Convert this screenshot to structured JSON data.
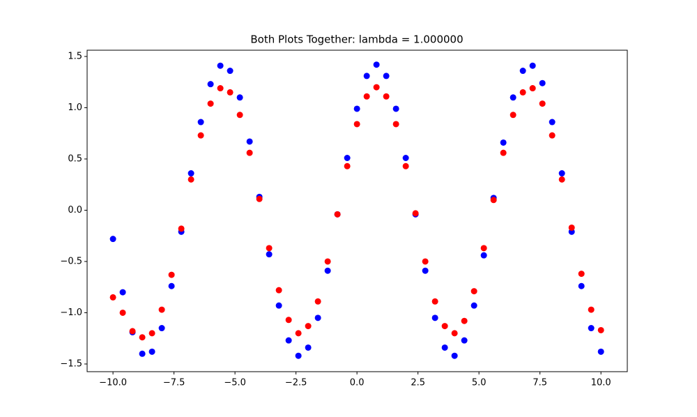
{
  "chart_data": {
    "type": "scatter",
    "title": "Both Plots Together: lambda = 1.000000",
    "x": [
      -10,
      -9.6,
      -9.2,
      -8.8,
      -8.4,
      -8.0,
      -7.6,
      -7.2,
      -6.8,
      -6.4,
      -6.0,
      -5.6,
      -5.2,
      -4.8,
      -4.4,
      -4.0,
      -3.6,
      -3.2,
      -2.8,
      -2.4,
      -2.0,
      -1.6,
      -1.2,
      -0.8,
      -0.4,
      0,
      0.4,
      0.8,
      1.2,
      1.6,
      2.0,
      2.4,
      2.8,
      3.2,
      3.6,
      4.0,
      4.4,
      4.8,
      5.2,
      5.6,
      6.0,
      6.4,
      6.8,
      7.2,
      7.6,
      8.0,
      8.4,
      8.8,
      9.2,
      9.6,
      10.0
    ],
    "series": [
      {
        "color": "#0000ff",
        "values": [
          -0.28,
          -0.8,
          -1.19,
          -1.4,
          -1.38,
          -1.15,
          -0.74,
          -0.21,
          0.36,
          0.86,
          1.23,
          1.41,
          1.36,
          1.1,
          0.67,
          0.13,
          -0.43,
          -0.93,
          -1.27,
          -1.42,
          -1.34,
          -1.05,
          -0.59,
          -0.04,
          0.51,
          0.99,
          1.31,
          1.42,
          1.31,
          0.99,
          0.51,
          -0.04,
          -0.59,
          -1.05,
          -1.34,
          -1.42,
          -1.27,
          -0.93,
          -0.44,
          0.12,
          0.66,
          1.1,
          1.36,
          1.41,
          1.24,
          0.86,
          0.36,
          -0.21,
          -0.74,
          -1.15,
          -1.38
        ]
      },
      {
        "color": "#ff0000",
        "values": [
          -0.85,
          -1.0,
          -1.18,
          -1.24,
          -1.2,
          -0.97,
          -0.63,
          -0.18,
          0.3,
          0.73,
          1.04,
          1.19,
          1.15,
          0.93,
          0.56,
          0.11,
          -0.37,
          -0.78,
          -1.07,
          -1.2,
          -1.13,
          -0.89,
          -0.5,
          -0.04,
          0.43,
          0.84,
          1.11,
          1.2,
          1.11,
          0.84,
          0.43,
          -0.03,
          -0.5,
          -0.89,
          -1.13,
          -1.2,
          -1.08,
          -0.79,
          -0.37,
          0.1,
          0.56,
          0.93,
          1.15,
          1.19,
          1.04,
          0.73,
          0.3,
          -0.17,
          -0.62,
          -0.97,
          -1.17
        ]
      }
    ],
    "xlim": [
      -11.06,
      11.08
    ],
    "ylim": [
      -1.575,
      1.561
    ],
    "xticks": [
      {
        "value": -10,
        "label": "−10.0"
      },
      {
        "value": -7.5,
        "label": "−7.5"
      },
      {
        "value": -5,
        "label": "−5.0"
      },
      {
        "value": -2.5,
        "label": "−2.5"
      },
      {
        "value": 0,
        "label": "0.0"
      },
      2.5,
      {
        "value": 5,
        "label": "5.0"
      },
      7.5,
      {
        "value": 10,
        "label": "10.0"
      }
    ],
    "yticks": [
      {
        "value": -1.5,
        "label": "−1.5"
      },
      {
        "value": -1,
        "label": "−1.0"
      },
      {
        "value": -0.5,
        "label": "−0.5"
      },
      {
        "value": 0,
        "label": "0.0"
      },
      0.5,
      {
        "value": 1,
        "label": "1.0"
      },
      1.5
    ]
  }
}
